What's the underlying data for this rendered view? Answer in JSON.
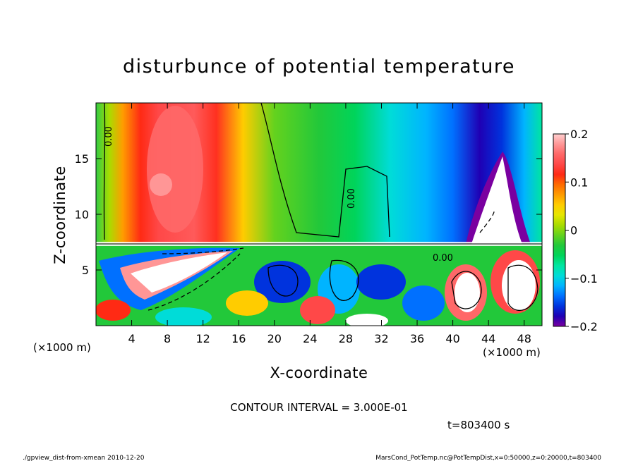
{
  "chart_data": {
    "type": "heatmap",
    "title": "disturbunce of potential temperature",
    "xlabel": "X-coordinate",
    "ylabel": "Z-coordinate",
    "x_unit": "(×1000 m)",
    "y_unit": "(×1000 m)",
    "xlim": [
      0,
      50
    ],
    "ylim": [
      0,
      20
    ],
    "x_ticks": [
      4,
      8,
      12,
      16,
      20,
      24,
      28,
      32,
      36,
      40,
      44,
      48
    ],
    "y_ticks": [
      5,
      10,
      15
    ],
    "colorbar": {
      "range": [
        -0.2,
        0.2
      ],
      "tick_values": [
        0.2,
        0.1,
        0,
        -0.1,
        -0.2
      ],
      "tick_labels": [
        "0.2",
        "0.1",
        "0",
        "−0.1",
        "−0.2"
      ],
      "colors": [
        "#7a00a0",
        "#1f00b4",
        "#0033dd",
        "#0070ff",
        "#00b4ff",
        "#00dcd8",
        "#00e6a0",
        "#00d45a",
        "#22c83a",
        "#64d21e",
        "#a8dc00",
        "#e6e600",
        "#ffcc00",
        "#ff9c00",
        "#ff6a00",
        "#ff2a14",
        "#ff4848",
        "#ff6868",
        "#ff9696",
        "#ffd0d0"
      ]
    },
    "contour_interval": "CONTOUR INTERVAL = 3.000E-01",
    "contour_labels": [
      "0.00",
      "0.00",
      "0.00"
    ],
    "time_label": "t=803400 s",
    "description_fields": {
      "upper_layer_top_z": 7.5,
      "warm_anomaly_center_x": 9,
      "cold_anomaly_center_x": 45
    }
  },
  "footer": {
    "left": "./gpview_dist-from-xmean   2010-12-20",
    "right": "MarsCond_PotTemp.nc@PotTempDist,x=0:50000,z=0:20000,t=803400"
  }
}
